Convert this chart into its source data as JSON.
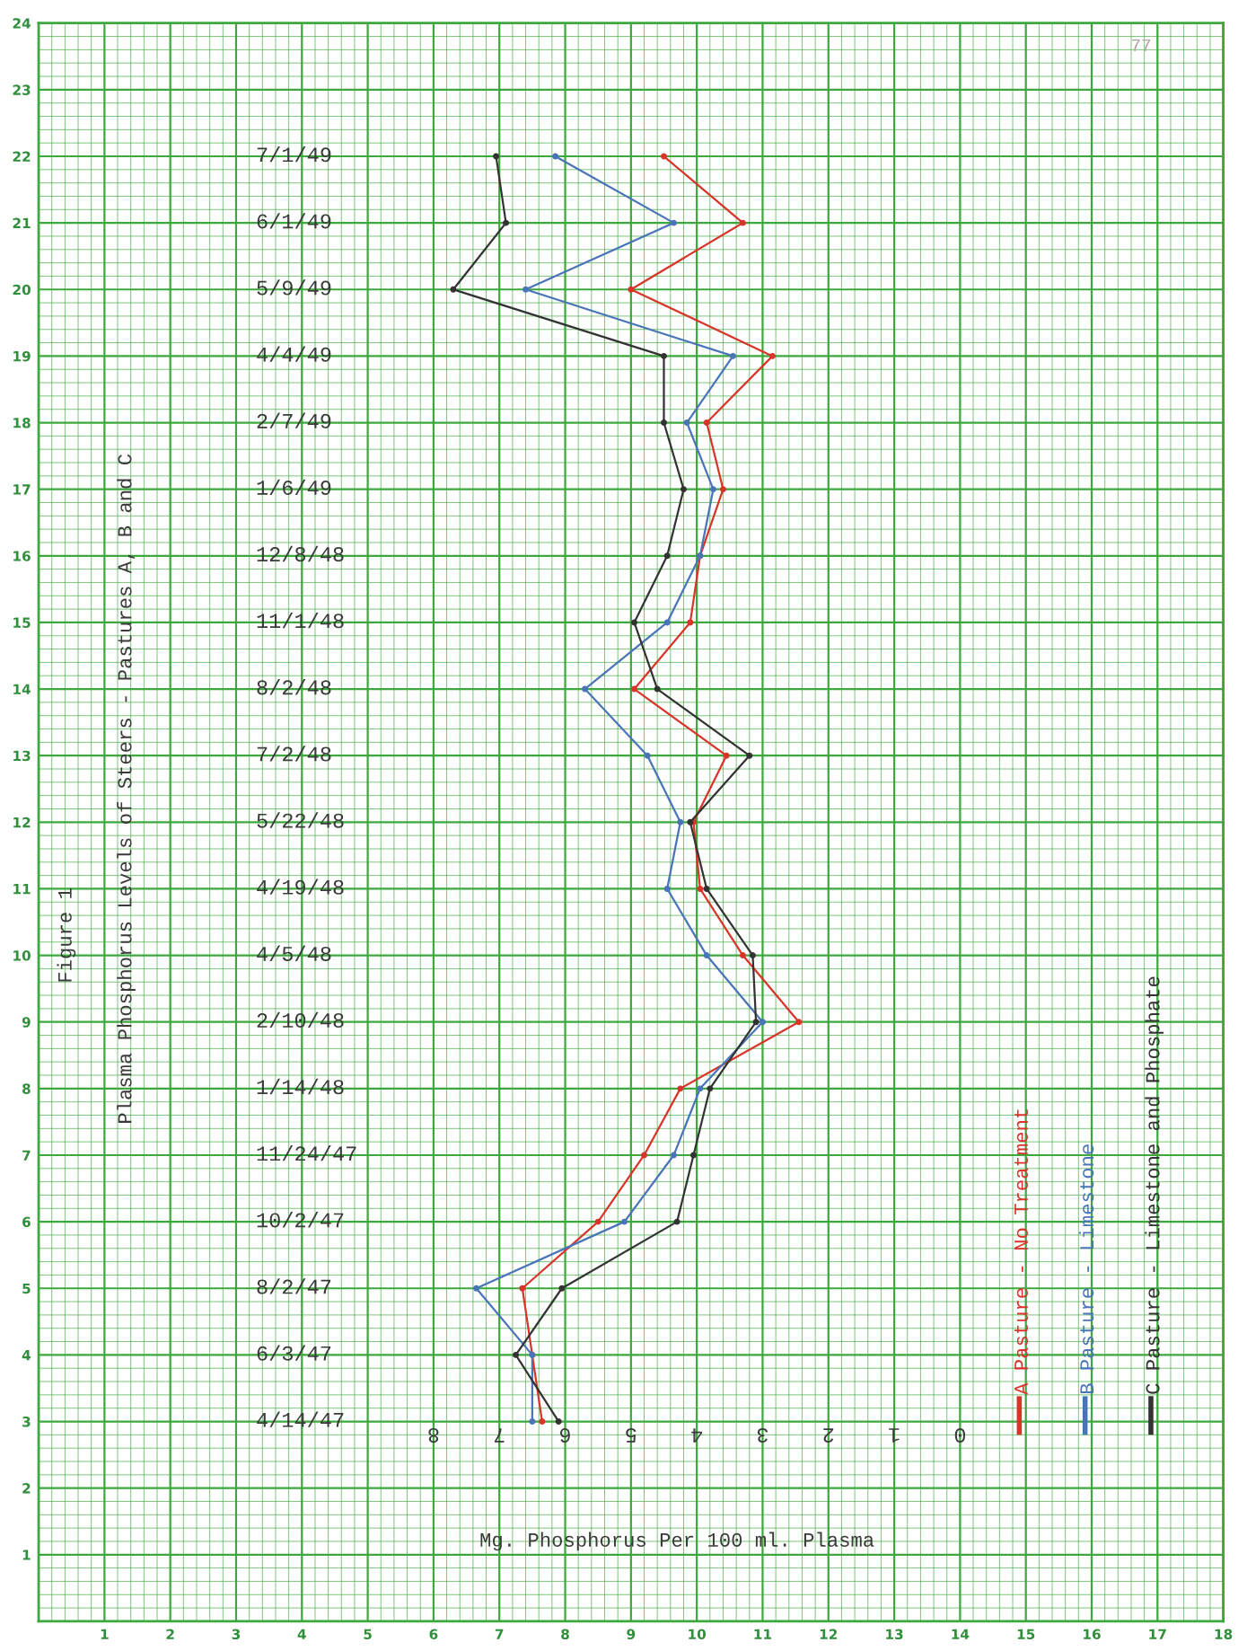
{
  "chart_data": {
    "type": "line",
    "title": "Plasma Phosphorus Levels of Steers - Pastures A, B and C",
    "xlabel": "Mg. Phosphorus Per 100 ml. Plasma",
    "annotations": [
      "Figure 1",
      "77",
      "7/1/49",
      "6/1/49",
      "5/9/49",
      "4/4/49",
      "2/7/49",
      "1/6/49",
      "12/8/48",
      "11/1/48",
      "8/2/48",
      "7/2/48",
      "5/22/48",
      "4/19/48",
      "4/5/48",
      "2/10/48",
      "1/14/48",
      "11/24/47",
      "10/2/47",
      "8/2/47",
      "6/3/47",
      "4/14/47"
    ],
    "series": [
      {
        "name": "A Pasture - No Treatment",
        "color": "#d8352a",
        "axis": "x2",
        "x": [
          4.5,
          3.3,
          5.0,
          2.85,
          3.85,
          3.6,
          3.95,
          4.1,
          4.95,
          3.55,
          4.05,
          3.95,
          3.3,
          2.45,
          4.25,
          4.8,
          5.5,
          6.65,
          6.5,
          6.35
        ],
        "values": [
          22,
          21,
          20,
          19,
          18,
          17,
          16,
          15,
          14,
          13,
          12,
          11,
          10,
          9,
          8,
          7,
          6,
          5,
          4,
          3
        ]
      },
      {
        "name": "B Pasture - Limestone",
        "color": "#4a74b8",
        "axis": "x2",
        "x": [
          6.15,
          4.35,
          6.6,
          3.45,
          4.15,
          3.75,
          3.95,
          4.45,
          5.7,
          4.75,
          4.25,
          4.45,
          3.85,
          3.0,
          3.95,
          4.35,
          5.1,
          7.35,
          6.5,
          6.5
        ],
        "values": [
          22,
          21,
          20,
          19,
          18,
          17,
          16,
          15,
          14,
          13,
          12,
          11,
          10,
          9,
          8,
          7,
          6,
          5,
          4,
          3
        ]
      },
      {
        "name": "C Pasture - Limestone and Phosphate",
        "color": "#333333",
        "axis": "x2",
        "x": [
          7.05,
          6.9,
          7.7,
          4.5,
          4.5,
          4.2,
          4.45,
          4.95,
          4.6,
          3.2,
          4.1,
          3.85,
          3.15,
          3.1,
          3.8,
          4.05,
          4.3,
          6.05,
          6.75,
          6.1
        ],
        "values": [
          22,
          21,
          20,
          19,
          18,
          17,
          16,
          15,
          14,
          13,
          12,
          11,
          10,
          9,
          8,
          7,
          6,
          5,
          4,
          3
        ]
      }
    ],
    "x2lim": [
      14,
      -4
    ],
    "x2ticks": [
      8,
      7,
      6,
      5,
      4,
      3,
      2,
      1,
      0
    ],
    "xlim": [
      0,
      18
    ],
    "xticks": [
      {
        "value": 0.2,
        "label": null
      },
      {
        "value": 0.4,
        "label": null
      },
      {
        "value": 0.6,
        "label": null
      },
      {
        "value": 0.8,
        "label": null
      },
      1,
      {
        "value": 1.2,
        "label": null
      },
      {
        "value": 1.4,
        "label": null
      },
      {
        "value": 1.6,
        "label": null
      },
      {
        "value": 1.8,
        "label": null
      },
      2,
      {
        "value": 2.2,
        "label": null
      },
      {
        "value": 2.4,
        "label": null
      },
      {
        "value": 2.6,
        "label": null
      },
      {
        "value": 2.8,
        "label": null
      },
      3,
      {
        "value": 3.2,
        "label": null
      },
      {
        "value": 3.4,
        "label": null
      },
      {
        "value": 3.6,
        "label": null
      },
      {
        "value": 3.8,
        "label": null
      },
      4,
      {
        "value": 4.2,
        "label": null
      },
      {
        "value": 4.4,
        "label": null
      },
      {
        "value": 4.6,
        "label": null
      },
      {
        "value": 4.8,
        "label": null
      },
      5,
      {
        "value": 5.2,
        "label": null
      },
      {
        "value": 5.4,
        "label": null
      },
      {
        "value": 5.6,
        "label": null
      },
      {
        "value": 5.8,
        "label": null
      },
      6,
      {
        "value": 6.2,
        "label": null
      },
      {
        "value": 6.4,
        "label": null
      },
      {
        "value": 6.6,
        "label": null
      },
      {
        "value": 6.8,
        "label": null
      },
      7,
      {
        "value": 7.2,
        "label": null
      },
      {
        "value": 7.4,
        "label": null
      },
      {
        "value": 7.6,
        "label": null
      },
      {
        "value": 7.8,
        "label": null
      },
      8,
      {
        "value": 8.2,
        "label": null
      },
      {
        "value": 8.4,
        "label": null
      },
      {
        "value": 8.6,
        "label": null
      },
      {
        "value": 8.8,
        "label": null
      },
      9,
      {
        "value": 9.2,
        "label": null
      },
      {
        "value": 9.4,
        "label": null
      },
      {
        "value": 9.6,
        "label": null
      },
      {
        "value": 9.8,
        "label": null
      },
      10,
      {
        "value": 10.2,
        "label": null
      },
      {
        "value": 10.4,
        "label": null
      },
      {
        "value": 10.6,
        "label": null
      },
      {
        "value": 10.8,
        "label": null
      },
      11,
      {
        "value": 11.2,
        "label": null
      },
      {
        "value": 11.4,
        "label": null
      },
      {
        "value": 11.6,
        "label": null
      },
      {
        "value": 11.8,
        "label": null
      },
      12,
      {
        "value": 12.2,
        "label": null
      },
      {
        "value": 12.4,
        "label": null
      },
      {
        "value": 12.6,
        "label": null
      },
      {
        "value": 12.8,
        "label": null
      },
      13,
      {
        "value": 13.2,
        "label": null
      },
      {
        "value": 13.4,
        "label": null
      },
      {
        "value": 13.6,
        "label": null
      },
      {
        "value": 13.8,
        "label": null
      },
      14,
      {
        "value": 14.2,
        "label": null
      },
      {
        "value": 14.4,
        "label": null
      },
      {
        "value": 14.6,
        "label": null
      },
      {
        "value": 14.8,
        "label": null
      },
      15,
      {
        "value": 15.2,
        "label": null
      },
      {
        "value": 15.4,
        "label": null
      },
      {
        "value": 15.6,
        "label": null
      },
      {
        "value": 15.8,
        "label": null
      },
      16,
      {
        "value": 16.2,
        "label": null
      },
      {
        "value": 16.4,
        "label": null
      },
      {
        "value": 16.6,
        "label": null
      },
      {
        "value": 16.8,
        "label": null
      },
      17,
      {
        "value": 17.2,
        "label": null
      },
      {
        "value": 17.4,
        "label": null
      },
      {
        "value": 17.6,
        "label": null
      },
      {
        "value": 17.8,
        "label": null
      },
      18
    ],
    "ylim": [
      0,
      24
    ],
    "yticks": [
      {
        "value": 0.2,
        "label": null
      },
      {
        "value": 0.4,
        "label": null
      },
      {
        "value": 0.6,
        "label": null
      },
      {
        "value": 0.8,
        "label": null
      },
      1,
      {
        "value": 1.2,
        "label": null
      },
      {
        "value": 1.4,
        "label": null
      },
      {
        "value": 1.6,
        "label": null
      },
      {
        "value": 1.8,
        "label": null
      },
      2,
      {
        "value": 2.2,
        "label": null
      },
      {
        "value": 2.4,
        "label": null
      },
      {
        "value": 2.6,
        "label": null
      },
      {
        "value": 2.8,
        "label": null
      },
      3,
      {
        "value": 3.2,
        "label": null
      },
      {
        "value": 3.4,
        "label": null
      },
      {
        "value": 3.6,
        "label": null
      },
      {
        "value": 3.8,
        "label": null
      },
      4,
      {
        "value": 4.2,
        "label": null
      },
      {
        "value": 4.4,
        "label": null
      },
      {
        "value": 4.6,
        "label": null
      },
      {
        "value": 4.8,
        "label": null
      },
      5,
      {
        "value": 5.2,
        "label": null
      },
      {
        "value": 5.4,
        "label": null
      },
      {
        "value": 5.6,
        "label": null
      },
      {
        "value": 5.8,
        "label": null
      },
      6,
      {
        "value": 6.2,
        "label": null
      },
      {
        "value": 6.4,
        "label": null
      },
      {
        "value": 6.6,
        "label": null
      },
      {
        "value": 6.8,
        "label": null
      },
      7,
      {
        "value": 7.2,
        "label": null
      },
      {
        "value": 7.4,
        "label": null
      },
      {
        "value": 7.6,
        "label": null
      },
      {
        "value": 7.8,
        "label": null
      },
      8,
      {
        "value": 8.2,
        "label": null
      },
      {
        "value": 8.4,
        "label": null
      },
      {
        "value": 8.6,
        "label": null
      },
      {
        "value": 8.8,
        "label": null
      },
      9,
      {
        "value": 9.2,
        "label": null
      },
      {
        "value": 9.4,
        "label": null
      },
      {
        "value": 9.6,
        "label": null
      },
      {
        "value": 9.8,
        "label": null
      },
      10,
      {
        "value": 10.2,
        "label": null
      },
      {
        "value": 10.4,
        "label": null
      },
      {
        "value": 10.6,
        "label": null
      },
      {
        "value": 10.8,
        "label": null
      },
      11,
      {
        "value": 11.2,
        "label": null
      },
      {
        "value": 11.4,
        "label": null
      },
      {
        "value": 11.6,
        "label": null
      },
      {
        "value": 11.8,
        "label": null
      },
      12,
      {
        "value": 12.2,
        "label": null
      },
      {
        "value": 12.4,
        "label": null
      },
      {
        "value": 12.6,
        "label": null
      },
      {
        "value": 12.8,
        "label": null
      },
      13,
      {
        "value": 13.2,
        "label": null
      },
      {
        "value": 13.4,
        "label": null
      },
      {
        "value": 13.6,
        "label": null
      },
      {
        "value": 13.8,
        "label": null
      },
      14,
      {
        "value": 14.2,
        "label": null
      },
      {
        "value": 14.4,
        "label": null
      },
      {
        "value": 14.6,
        "label": null
      },
      {
        "value": 14.8,
        "label": null
      },
      15,
      {
        "value": 15.2,
        "label": null
      },
      {
        "value": 15.4,
        "label": null
      },
      {
        "value": 15.6,
        "label": null
      },
      {
        "value": 15.8,
        "label": null
      },
      16,
      {
        "value": 16.2,
        "label": null
      },
      {
        "value": 16.4,
        "label": null
      },
      {
        "value": 16.6,
        "label": null
      },
      {
        "value": 16.8,
        "label": null
      },
      17,
      {
        "value": 17.2,
        "label": null
      },
      {
        "value": 17.4,
        "label": null
      },
      {
        "value": 17.6,
        "label": null
      },
      {
        "value": 17.8,
        "label": null
      },
      18,
      {
        "value": 18.2,
        "label": null
      },
      {
        "value": 18.4,
        "label": null
      },
      {
        "value": 18.6,
        "label": null
      },
      {
        "value": 18.8,
        "label": null
      },
      19,
      {
        "value": 19.2,
        "label": null
      },
      {
        "value": 19.4,
        "label": null
      },
      {
        "value": 19.6,
        "label": null
      },
      {
        "value": 19.8,
        "label": null
      },
      20,
      {
        "value": 20.2,
        "label": null
      },
      {
        "value": 20.4,
        "label": null
      },
      {
        "value": 20.6,
        "label": null
      },
      {
        "value": 20.8,
        "label": null
      },
      21,
      {
        "value": 21.2,
        "label": null
      },
      {
        "value": 21.4,
        "label": null
      },
      {
        "value": 21.6,
        "label": null
      },
      {
        "value": 21.8,
        "label": null
      },
      22,
      {
        "value": 22.2,
        "label": null
      },
      {
        "value": 22.4,
        "label": null
      },
      {
        "value": 22.6,
        "label": null
      },
      {
        "value": 22.8,
        "label": null
      },
      23,
      {
        "value": 23.2,
        "label": null
      },
      {
        "value": 23.4,
        "label": null
      },
      {
        "value": 23.6,
        "label": null
      },
      {
        "value": 23.8,
        "label": null
      },
      24
    ],
    "grid": true,
    "legend": "bottom right",
    "marker": "circle"
  }
}
